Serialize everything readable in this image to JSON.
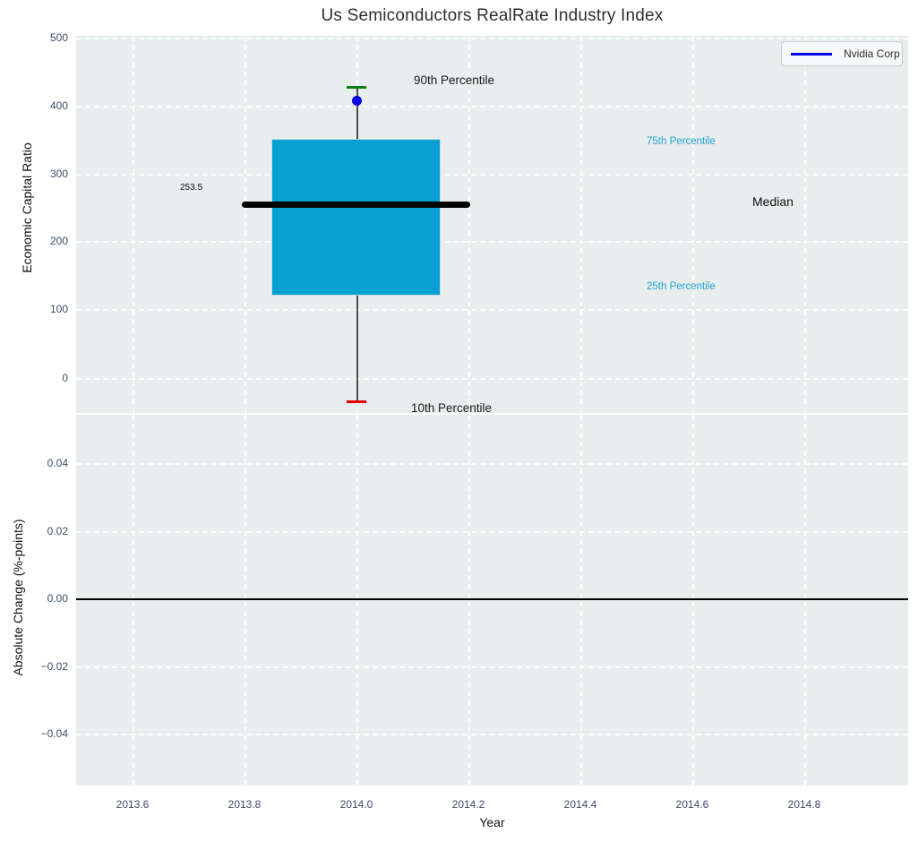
{
  "title": "Us Semiconductors RealRate Industry Index",
  "legend": {
    "label": "Nvidia Corp",
    "line_color": "#0707ec"
  },
  "colors": {
    "axes_background": "#e8edee",
    "gridline": "#ffffff",
    "box_fill": "#089fd2",
    "median_line": "#000000",
    "whisker": "#4d4d4d",
    "cap_90th": "#067d10",
    "cap_10th": "#e60000",
    "nvidia_point": "#0707ec",
    "percentile_label": "#23a2d4",
    "tick_label": "#3d4e68"
  },
  "annotations": {
    "p90": "90th Percentile",
    "p75": "75th Percentile",
    "median": "Median",
    "p25": "25th Percentile",
    "p10": "10th Percentile",
    "median_value": "253.5"
  },
  "axes": {
    "top": {
      "ylabel": "Economic Capital Ratio",
      "yticks": [
        "500",
        "400",
        "300",
        "200",
        "100",
        "0"
      ]
    },
    "bottom": {
      "ylabel": "Absolute Change (%-points)",
      "yticks": [
        "0.04",
        "0.02",
        "0.00",
        "−0.02",
        "−0.04"
      ],
      "xlabel": "Year",
      "xticks": [
        "2013.6",
        "2013.8",
        "2014.0",
        "2014.2",
        "2014.4",
        "2014.6",
        "2014.8"
      ]
    }
  },
  "chart_data": [
    {
      "type": "box",
      "title": "Us Semiconductors RealRate Industry Index",
      "ylabel": "Economic Capital Ratio",
      "xlabel": "Year",
      "ylim": [
        -52,
        503
      ],
      "xlim": [
        2013.5,
        2014.99
      ],
      "yticks": [
        0,
        100,
        200,
        300,
        400,
        500
      ],
      "grid": true,
      "boxes": [
        {
          "x": 2014.0,
          "box_width_years": 0.3,
          "p10": -35,
          "p25": 120,
          "median": 253.5,
          "p75": 350,
          "p90": 425,
          "median_label": "253.5"
        }
      ],
      "points": [
        {
          "name": "Nvidia Corp",
          "x": 2014.0,
          "y": 405
        }
      ],
      "legend": {
        "entries": [
          "Nvidia Corp"
        ],
        "position": "upper right"
      },
      "annotations": [
        "90th Percentile",
        "75th Percentile",
        "Median",
        "25th Percentile",
        "10th Percentile"
      ]
    },
    {
      "type": "line",
      "ylabel": "Absolute Change (%-points)",
      "xlabel": "Year",
      "ylim": [
        -0.056,
        0.055
      ],
      "xlim": [
        2013.5,
        2014.99
      ],
      "yticks": [
        0.04,
        0.02,
        0.0,
        -0.02,
        -0.04
      ],
      "xticks": [
        2013.6,
        2013.8,
        2014.0,
        2014.2,
        2014.4,
        2014.6,
        2014.8
      ],
      "grid": true,
      "series": [],
      "zero_line": 0.0
    }
  ]
}
